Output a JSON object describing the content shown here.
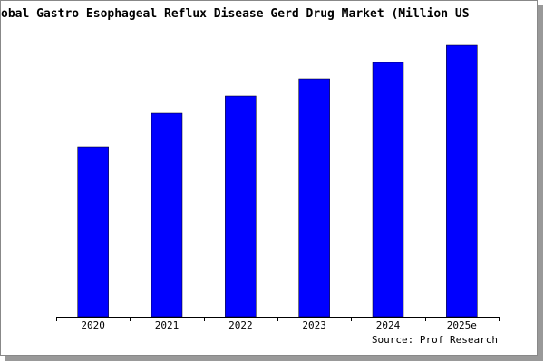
{
  "chart_data": {
    "type": "bar",
    "title": "obal Gastro Esophageal Reflux Disease Gerd Drug Market (Million US",
    "categories": [
      "2020",
      "2021",
      "2022",
      "2023",
      "2024",
      "2025e"
    ],
    "values": [
      188,
      225,
      244,
      263,
      281,
      300
    ],
    "color": "#0000ff",
    "source": "Source: Prof Research"
  }
}
